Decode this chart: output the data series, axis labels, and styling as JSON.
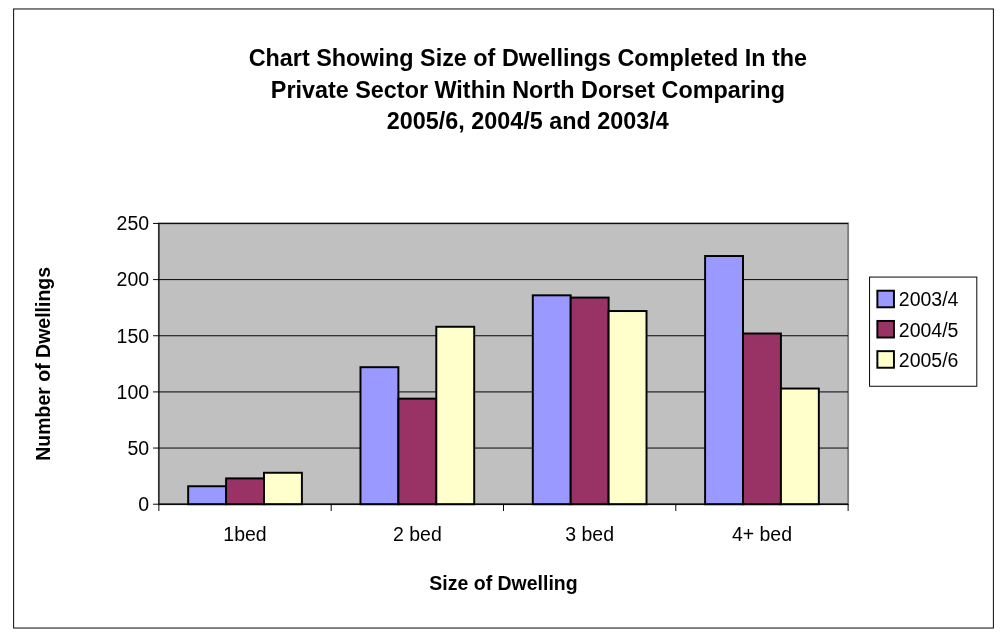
{
  "chart_data": {
    "type": "bar",
    "title": "Chart Showing Size of Dwellings Completed In the Private Sector Within North Dorset Comparing 2005/6, 2004/5 and 2003/4",
    "xlabel": "Size of Dwelling",
    "ylabel": "Number of Dwellings",
    "categories": [
      "1bed",
      "2 bed",
      "3 bed",
      "4+ bed"
    ],
    "series": [
      {
        "name": "2003/4",
        "color": "#9999ff",
        "values": [
          16,
          122,
          186,
          221
        ]
      },
      {
        "name": "2004/5",
        "color": "#993366",
        "values": [
          23,
          94,
          184,
          152
        ]
      },
      {
        "name": "2005/6",
        "color": "#ffffcc",
        "values": [
          28,
          158,
          172,
          103
        ]
      }
    ],
    "ylim": [
      0,
      250
    ],
    "yticks": [
      0,
      50,
      100,
      150,
      200,
      250
    ],
    "grid": "y",
    "legend": "right"
  }
}
